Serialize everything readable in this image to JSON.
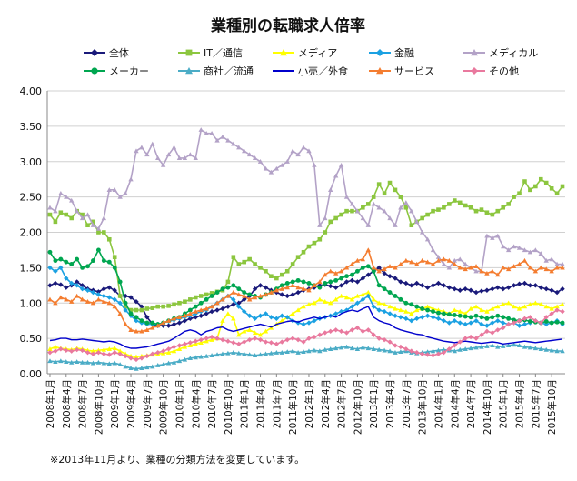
{
  "chart_data": {
    "type": "line",
    "title": "業種別の転職求人倍率",
    "note": "※2013年11月より、業種の分類方法を変更しています。",
    "xlabel": "",
    "ylabel": "",
    "ylim": [
      0,
      4
    ],
    "yticks": [
      "0.00",
      "0.50",
      "1.00",
      "1.50",
      "2.00",
      "2.50",
      "3.00",
      "3.50",
      "4.00"
    ],
    "grid": true,
    "legend_position": "top",
    "start": "2008-01",
    "months": 96,
    "xtick_labels": [
      "2008年1月",
      "2008年4月",
      "2008年7月",
      "2008年10月",
      "2009年1月",
      "2009年4月",
      "2009年7月",
      "2009年10月",
      "2010年1月",
      "2010年4月",
      "2010年7月",
      "2010年10月",
      "2011年1月",
      "2011年4月",
      "2011年7月",
      "2011年10月",
      "2012年1月",
      "2012年4月",
      "2012年7月",
      "2012年10月",
      "2013年1月",
      "2013年4月",
      "2013年7月",
      "2013年10月",
      "2014年1月",
      "2014年4月",
      "2014年7月",
      "2014年10月",
      "2015年1月",
      "2015年4月",
      "2015年7月",
      "2015年10月"
    ],
    "series": [
      {
        "name": "全体",
        "color": "#1a1a7a",
        "marker": "diamond",
        "values": [
          1.25,
          1.28,
          1.26,
          1.22,
          1.25,
          1.3,
          1.25,
          1.2,
          1.18,
          1.16,
          1.2,
          1.22,
          1.18,
          1.1,
          1.1,
          1.08,
          1.02,
          0.95,
          0.8,
          0.7,
          0.68,
          0.68,
          0.68,
          0.7,
          0.72,
          0.75,
          0.78,
          0.8,
          0.82,
          0.85,
          0.88,
          0.9,
          0.92,
          0.95,
          0.98,
          1.0,
          1.05,
          1.1,
          1.2,
          1.25,
          1.22,
          1.18,
          1.15,
          1.12,
          1.1,
          1.12,
          1.15,
          1.18,
          1.2,
          1.22,
          1.25,
          1.26,
          1.24,
          1.22,
          1.25,
          1.3,
          1.32,
          1.3,
          1.35,
          1.4,
          1.45,
          1.5,
          1.42,
          1.38,
          1.35,
          1.3,
          1.28,
          1.25,
          1.28,
          1.25,
          1.22,
          1.25,
          1.28,
          1.25,
          1.22,
          1.2,
          1.18,
          1.2,
          1.18,
          1.15,
          1.17,
          1.18,
          1.2,
          1.22,
          1.2,
          1.22,
          1.25,
          1.27,
          1.28,
          1.25,
          1.25,
          1.22,
          1.2,
          1.18,
          1.15,
          1.2
        ]
      },
      {
        "name": "IT／通信",
        "color": "#8cc63f",
        "marker": "square",
        "values": [
          2.25,
          2.15,
          2.28,
          2.25,
          2.2,
          2.3,
          2.25,
          2.1,
          2.15,
          2.0,
          2.0,
          1.9,
          1.65,
          1.1,
          0.95,
          0.9,
          0.9,
          0.9,
          0.92,
          0.93,
          0.95,
          0.95,
          0.96,
          0.98,
          1.0,
          1.02,
          1.05,
          1.08,
          1.1,
          1.12,
          1.14,
          1.16,
          1.18,
          1.3,
          1.65,
          1.55,
          1.58,
          1.62,
          1.55,
          1.5,
          1.45,
          1.38,
          1.35,
          1.4,
          1.45,
          1.55,
          1.65,
          1.72,
          1.8,
          1.85,
          1.9,
          2.0,
          2.15,
          2.2,
          2.25,
          2.3,
          2.3,
          2.3,
          2.35,
          2.4,
          2.5,
          2.68,
          2.55,
          2.7,
          2.6,
          2.5,
          2.35,
          2.1,
          2.15,
          2.2,
          2.25,
          2.3,
          2.32,
          2.35,
          2.4,
          2.45,
          2.42,
          2.38,
          2.35,
          2.3,
          2.32,
          2.28,
          2.25,
          2.3,
          2.35,
          2.4,
          2.5,
          2.55,
          2.72,
          2.6,
          2.65,
          2.75,
          2.7,
          2.62,
          2.55,
          2.65
        ]
      },
      {
        "name": "メディア",
        "color": "#ffff00",
        "marker": "triangle",
        "values": [
          0.35,
          0.38,
          0.36,
          0.35,
          0.34,
          0.36,
          0.35,
          0.33,
          0.32,
          0.33,
          0.34,
          0.35,
          0.36,
          0.32,
          0.28,
          0.25,
          0.24,
          0.25,
          0.26,
          0.27,
          0.28,
          0.29,
          0.3,
          0.32,
          0.35,
          0.38,
          0.4,
          0.42,
          0.44,
          0.46,
          0.48,
          0.5,
          0.75,
          0.85,
          0.78,
          0.55,
          0.6,
          0.62,
          0.58,
          0.55,
          0.6,
          0.65,
          0.7,
          0.75,
          0.8,
          0.85,
          0.9,
          0.95,
          0.98,
          1.0,
          1.05,
          1.02,
          1.0,
          1.05,
          1.1,
          1.08,
          1.05,
          1.1,
          1.12,
          1.15,
          1.05,
          1.0,
          0.98,
          0.95,
          0.92,
          0.9,
          0.88,
          0.85,
          0.9,
          0.92,
          0.95,
          0.92,
          0.9,
          0.88,
          0.85,
          0.9,
          0.88,
          0.85,
          0.92,
          0.95,
          0.9,
          0.88,
          0.92,
          0.95,
          0.98,
          1.0,
          0.95,
          0.92,
          0.95,
          0.98,
          1.0,
          0.98,
          0.95,
          0.92,
          0.95,
          0.98
        ]
      },
      {
        "name": "金融",
        "color": "#1ba1e2",
        "marker": "diamond",
        "values": [
          1.5,
          1.45,
          1.5,
          1.35,
          1.28,
          1.25,
          1.2,
          1.18,
          1.15,
          1.12,
          1.1,
          1.08,
          1.05,
          1.0,
          0.9,
          0.82,
          0.75,
          0.72,
          0.7,
          0.7,
          0.7,
          0.72,
          0.74,
          0.76,
          0.78,
          0.8,
          0.82,
          0.85,
          0.88,
          0.9,
          0.95,
          1.0,
          1.05,
          1.1,
          1.05,
          0.95,
          0.88,
          0.82,
          0.78,
          0.82,
          0.85,
          0.8,
          0.78,
          0.82,
          0.8,
          0.75,
          0.72,
          0.7,
          0.72,
          0.75,
          0.78,
          0.8,
          0.82,
          0.85,
          0.88,
          0.9,
          0.95,
          1.0,
          1.05,
          1.1,
          0.95,
          0.9,
          0.88,
          0.85,
          0.82,
          0.8,
          0.78,
          0.75,
          0.78,
          0.8,
          0.82,
          0.8,
          0.78,
          0.75,
          0.72,
          0.75,
          0.72,
          0.7,
          0.72,
          0.75,
          0.7,
          0.68,
          0.72,
          0.75,
          0.72,
          0.7,
          0.72,
          0.68,
          0.7,
          0.72,
          0.75,
          0.72,
          0.7,
          0.72,
          0.75,
          0.7
        ]
      },
      {
        "name": "メディカル",
        "color": "#b3a2c7",
        "marker": "triangle",
        "values": [
          2.35,
          2.3,
          2.55,
          2.5,
          2.45,
          2.3,
          2.2,
          2.25,
          2.1,
          2.05,
          2.2,
          2.6,
          2.6,
          2.5,
          2.55,
          2.75,
          3.15,
          3.2,
          3.1,
          3.25,
          3.05,
          2.95,
          3.1,
          3.2,
          3.05,
          3.05,
          3.1,
          3.05,
          3.45,
          3.4,
          3.4,
          3.3,
          3.35,
          3.3,
          3.25,
          3.2,
          3.15,
          3.1,
          3.05,
          3.0,
          2.9,
          2.85,
          2.9,
          2.95,
          3.0,
          3.15,
          3.1,
          3.2,
          3.15,
          2.95,
          2.1,
          2.2,
          2.6,
          2.8,
          2.95,
          2.5,
          2.4,
          2.3,
          2.2,
          2.1,
          2.4,
          2.35,
          2.3,
          2.2,
          2.1,
          2.35,
          2.42,
          2.3,
          2.15,
          2.0,
          1.9,
          1.75,
          1.65,
          1.55,
          1.5,
          1.6,
          1.62,
          1.55,
          1.5,
          1.45,
          1.45,
          1.95,
          1.92,
          1.95,
          1.8,
          1.75,
          1.8,
          1.78,
          1.75,
          1.72,
          1.75,
          1.7,
          1.6,
          1.62,
          1.55,
          1.55
        ]
      },
      {
        "name": "メーカー",
        "color": "#00a650",
        "marker": "circle",
        "values": [
          1.72,
          1.6,
          1.62,
          1.58,
          1.55,
          1.62,
          1.5,
          1.52,
          1.6,
          1.75,
          1.6,
          1.58,
          1.5,
          1.3,
          1.0,
          0.85,
          0.8,
          0.75,
          0.72,
          0.72,
          0.7,
          0.72,
          0.75,
          0.78,
          0.8,
          0.85,
          0.9,
          0.95,
          1.0,
          1.05,
          1.1,
          1.15,
          1.2,
          1.22,
          1.25,
          1.2,
          1.15,
          1.12,
          1.1,
          1.08,
          1.12,
          1.15,
          1.2,
          1.25,
          1.28,
          1.3,
          1.32,
          1.3,
          1.28,
          1.25,
          1.22,
          1.28,
          1.3,
          1.32,
          1.35,
          1.38,
          1.4,
          1.45,
          1.5,
          1.52,
          1.45,
          1.25,
          1.2,
          1.15,
          1.1,
          1.05,
          1.0,
          0.98,
          0.95,
          0.92,
          0.9,
          0.88,
          0.86,
          0.85,
          0.84,
          0.83,
          0.82,
          0.81,
          0.8,
          0.82,
          0.8,
          0.78,
          0.8,
          0.82,
          0.8,
          0.78,
          0.76,
          0.75,
          0.76,
          0.74,
          0.73,
          0.72,
          0.74,
          0.72,
          0.73,
          0.72
        ]
      },
      {
        "name": "商社／流通",
        "color": "#4bacc6",
        "marker": "triangle",
        "values": [
          0.18,
          0.17,
          0.18,
          0.17,
          0.16,
          0.17,
          0.16,
          0.16,
          0.15,
          0.16,
          0.15,
          0.14,
          0.15,
          0.13,
          0.1,
          0.08,
          0.07,
          0.08,
          0.09,
          0.1,
          0.12,
          0.13,
          0.15,
          0.16,
          0.18,
          0.2,
          0.22,
          0.23,
          0.24,
          0.25,
          0.26,
          0.27,
          0.28,
          0.29,
          0.3,
          0.29,
          0.28,
          0.27,
          0.26,
          0.27,
          0.28,
          0.29,
          0.3,
          0.3,
          0.31,
          0.32,
          0.3,
          0.31,
          0.32,
          0.33,
          0.32,
          0.34,
          0.35,
          0.36,
          0.37,
          0.38,
          0.36,
          0.35,
          0.37,
          0.36,
          0.35,
          0.34,
          0.33,
          0.32,
          0.3,
          0.31,
          0.32,
          0.3,
          0.29,
          0.3,
          0.31,
          0.32,
          0.33,
          0.34,
          0.33,
          0.32,
          0.34,
          0.35,
          0.36,
          0.37,
          0.38,
          0.39,
          0.4,
          0.38,
          0.39,
          0.4,
          0.41,
          0.4,
          0.38,
          0.37,
          0.36,
          0.35,
          0.34,
          0.33,
          0.32,
          0.32
        ]
      },
      {
        "name": "小売／外食",
        "color": "#0000cc",
        "marker": "line",
        "values": [
          0.47,
          0.48,
          0.5,
          0.5,
          0.48,
          0.48,
          0.49,
          0.48,
          0.47,
          0.46,
          0.45,
          0.46,
          0.45,
          0.42,
          0.38,
          0.36,
          0.36,
          0.37,
          0.38,
          0.4,
          0.42,
          0.44,
          0.46,
          0.5,
          0.55,
          0.6,
          0.62,
          0.6,
          0.55,
          0.6,
          0.62,
          0.65,
          0.66,
          0.62,
          0.6,
          0.62,
          0.64,
          0.66,
          0.68,
          0.7,
          0.68,
          0.66,
          0.7,
          0.72,
          0.74,
          0.75,
          0.73,
          0.76,
          0.78,
          0.8,
          0.78,
          0.8,
          0.82,
          0.8,
          0.85,
          0.88,
          0.9,
          0.88,
          0.92,
          0.95,
          0.8,
          0.75,
          0.72,
          0.7,
          0.65,
          0.62,
          0.6,
          0.58,
          0.56,
          0.55,
          0.52,
          0.5,
          0.48,
          0.46,
          0.45,
          0.44,
          0.45,
          0.46,
          0.45,
          0.44,
          0.43,
          0.44,
          0.45,
          0.44,
          0.42,
          0.43,
          0.44,
          0.45,
          0.46,
          0.45,
          0.44,
          0.45,
          0.46,
          0.47,
          0.48,
          0.49
        ]
      },
      {
        "name": "サービス",
        "color": "#f47d30",
        "marker": "triangle",
        "values": [
          1.05,
          1.0,
          1.08,
          1.05,
          1.02,
          1.1,
          1.05,
          1.02,
          1.0,
          1.05,
          1.02,
          1.0,
          0.95,
          0.85,
          0.7,
          0.62,
          0.6,
          0.6,
          0.62,
          0.65,
          0.68,
          0.72,
          0.75,
          0.78,
          0.8,
          0.82,
          0.85,
          0.88,
          0.9,
          0.92,
          0.95,
          1.0,
          1.05,
          1.1,
          1.15,
          1.12,
          1.1,
          1.05,
          1.08,
          1.1,
          1.12,
          1.15,
          1.18,
          1.2,
          1.22,
          1.25,
          1.22,
          1.2,
          1.18,
          1.25,
          1.3,
          1.4,
          1.45,
          1.42,
          1.45,
          1.5,
          1.55,
          1.6,
          1.62,
          1.75,
          1.5,
          1.45,
          1.48,
          1.52,
          1.5,
          1.55,
          1.6,
          1.58,
          1.55,
          1.6,
          1.58,
          1.55,
          1.6,
          1.62,
          1.6,
          1.55,
          1.5,
          1.48,
          1.5,
          1.52,
          1.45,
          1.42,
          1.45,
          1.4,
          1.5,
          1.48,
          1.52,
          1.55,
          1.6,
          1.5,
          1.45,
          1.5,
          1.48,
          1.45,
          1.5,
          1.5
        ]
      },
      {
        "name": "その他",
        "color": "#e9799e",
        "marker": "diamond",
        "values": [
          0.3,
          0.32,
          0.35,
          0.33,
          0.32,
          0.34,
          0.33,
          0.3,
          0.28,
          0.3,
          0.28,
          0.27,
          0.3,
          0.28,
          0.25,
          0.22,
          0.2,
          0.22,
          0.25,
          0.28,
          0.3,
          0.32,
          0.35,
          0.38,
          0.4,
          0.42,
          0.44,
          0.46,
          0.48,
          0.5,
          0.52,
          0.5,
          0.48,
          0.46,
          0.44,
          0.42,
          0.45,
          0.48,
          0.5,
          0.48,
          0.45,
          0.44,
          0.42,
          0.45,
          0.48,
          0.5,
          0.48,
          0.45,
          0.5,
          0.52,
          0.55,
          0.58,
          0.6,
          0.62,
          0.6,
          0.58,
          0.62,
          0.65,
          0.6,
          0.62,
          0.55,
          0.5,
          0.48,
          0.45,
          0.4,
          0.38,
          0.35,
          0.32,
          0.3,
          0.28,
          0.27,
          0.26,
          0.28,
          0.3,
          0.35,
          0.4,
          0.45,
          0.5,
          0.52,
          0.5,
          0.55,
          0.6,
          0.58,
          0.62,
          0.65,
          0.7,
          0.72,
          0.75,
          0.78,
          0.8,
          0.75,
          0.72,
          0.8,
          0.85,
          0.9,
          0.88
        ]
      }
    ]
  }
}
